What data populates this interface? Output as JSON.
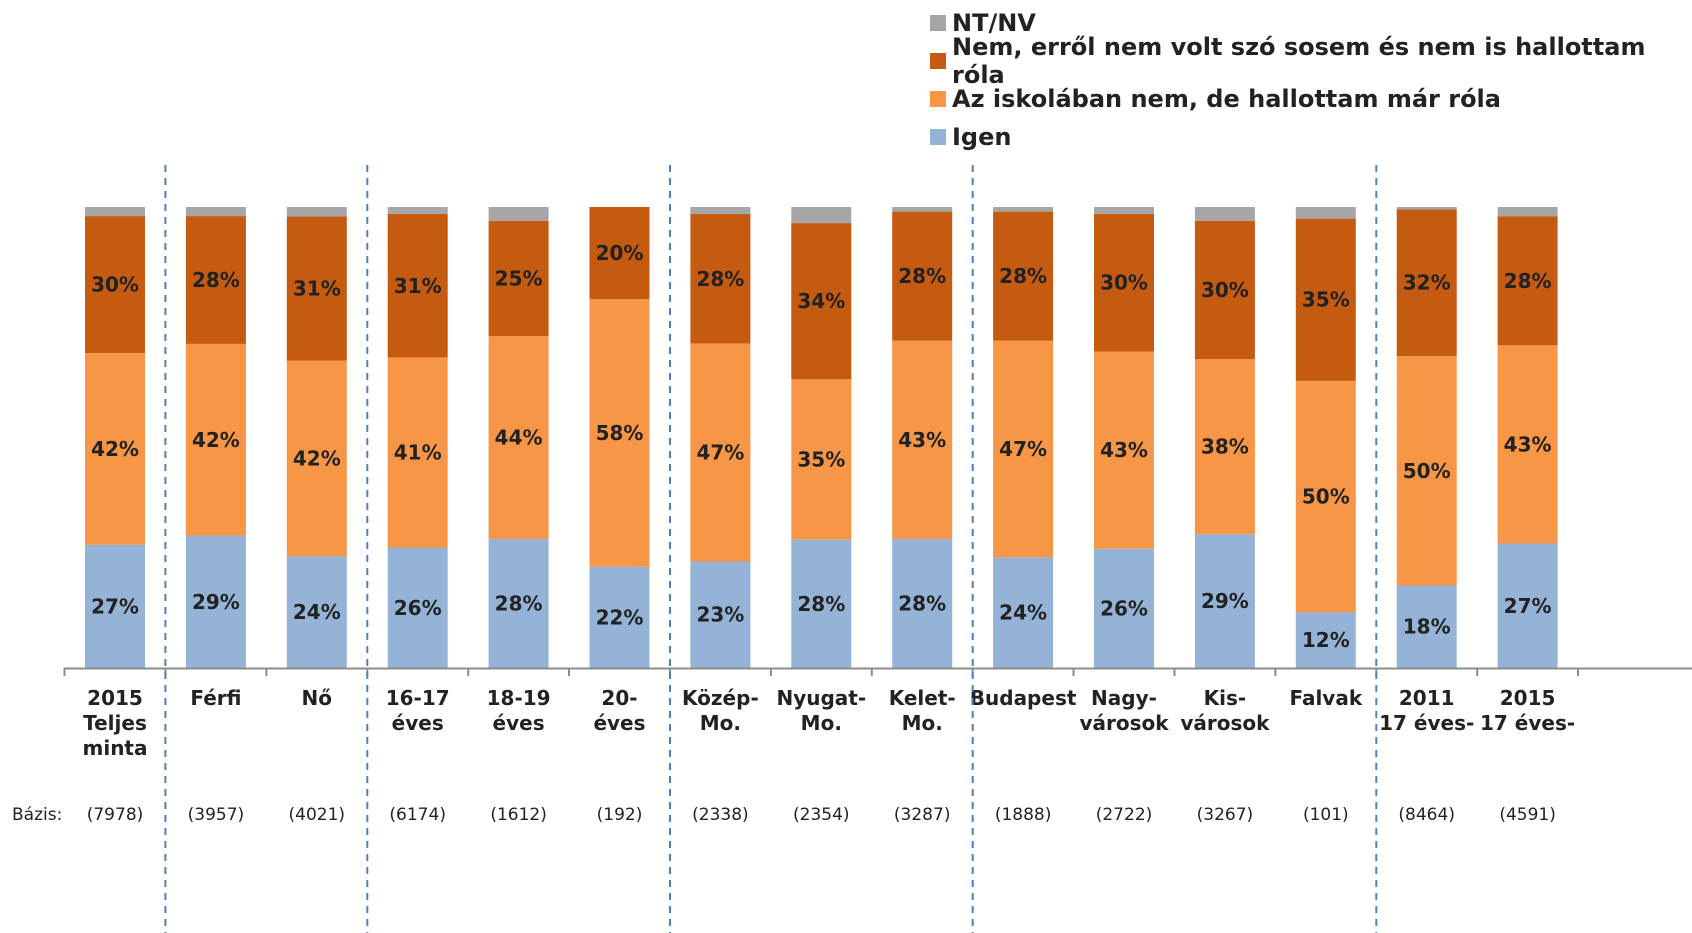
{
  "chart_data": {
    "type": "bar",
    "stacked": true,
    "percent": true,
    "categories": [
      "2015\nTeljes\nminta",
      "Férfi",
      "Nő",
      "16-17\néves",
      "18-19\néves",
      "20-\néves",
      "Közép-\nMo.",
      "Nyugat-\nMo.",
      "Kelet-\nMo.",
      "Budapest",
      "Nagy-\nvárosok",
      "Kis-\nvárosok",
      "Falvak",
      "2011\n17 éves-",
      "2015\n17 éves-"
    ],
    "series": [
      {
        "name": "Igen",
        "color": "#95B3D7",
        "values": [
          27,
          29,
          24,
          26,
          28,
          22,
          23,
          28,
          28,
          24,
          26,
          29,
          12,
          18,
          27
        ],
        "labels": [
          "27%",
          "29%",
          "24%",
          "26%",
          "28%",
          "22%",
          "23%",
          "28%",
          "28%",
          "24%",
          "26%",
          "29%",
          "12%",
          "18%",
          "27%"
        ]
      },
      {
        "name": "Az iskolában nem, de hallottam már róla",
        "color": "#F79646",
        "values": [
          42,
          42,
          42,
          41,
          44,
          58,
          47,
          35,
          43,
          47,
          43,
          38,
          50,
          50,
          43
        ],
        "labels": [
          "42%",
          "42%",
          "42%",
          "41%",
          "44%",
          "58%",
          "47%",
          "35%",
          "43%",
          "47%",
          "43%",
          "38%",
          "50%",
          "50%",
          "43%"
        ]
      },
      {
        "name": "Nem, erről nem volt szó sosem és nem is hallottam róla",
        "color": "#C55A11",
        "values": [
          30,
          28,
          31,
          31,
          25,
          20,
          28,
          34,
          28,
          28,
          30,
          30,
          35,
          32,
          28
        ],
        "labels": [
          "30%",
          "28%",
          "31%",
          "31%",
          "25%",
          "20%",
          "28%",
          "34%",
          "28%",
          "28%",
          "30%",
          "30%",
          "35%",
          "32%",
          "28%"
        ]
      },
      {
        "name": "NT/NV",
        "color": "#A6A6A6",
        "values": [
          2,
          2,
          2,
          1.5,
          3,
          0,
          1.5,
          3.5,
          1,
          1,
          1.5,
          3,
          2.5,
          0.5,
          2
        ],
        "labels": []
      }
    ],
    "ylim": [
      0,
      100
    ],
    "legend_position": "top-right",
    "legend_order": [
      "NT/NV",
      "Nem, erről nem volt szó sosem és nem is hallottam róla",
      "Az iskolában nem, de hallottam már róla",
      "Igen"
    ],
    "base_label": "Bázis:",
    "bases": [
      "(7978)",
      "(3957)",
      "(4021)",
      "(6174)",
      "(1612)",
      "(192)",
      "(2338)",
      "(2354)",
      "(3287)",
      "(1888)",
      "(2722)",
      "(3267)",
      "(101)",
      "(8464)",
      "(4591)"
    ],
    "group_separators_after": [
      0,
      2,
      5,
      8,
      12
    ],
    "grid": false
  }
}
